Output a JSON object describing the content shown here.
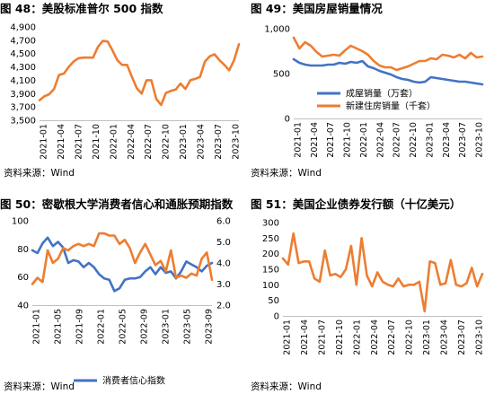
{
  "colors": {
    "blue": "#4472C4",
    "orange": "#ED7D31",
    "title_bar": "#C00000",
    "axis": "#999999"
  },
  "chart_data": [
    {
      "id": "p48",
      "type": "line",
      "title": "图 48：美股标准普尔 500 指数",
      "source": "资料来源：Wind",
      "ylim": [
        3500,
        4900
      ],
      "y_ticks": [
        "3,500",
        "3,700",
        "3,900",
        "4,100",
        "4,300",
        "4,500",
        "4,700",
        "4,900"
      ],
      "x_tick_labels": [
        "2021-01",
        "2021-04",
        "2021-07",
        "2021-10",
        "2022-01",
        "2022-04",
        "2022-07",
        "2022-10",
        "2023-01",
        "2023-04",
        "2023-07",
        "2023-10"
      ],
      "legend": "none",
      "series": [
        {
          "color": "orange",
          "values": [
            3800,
            3860,
            3890,
            3970,
            4180,
            4200,
            4300,
            4380,
            4430,
            4440,
            4440,
            4440,
            4600,
            4690,
            4680,
            4550,
            4400,
            4330,
            4330,
            4150,
            3980,
            3900,
            4100,
            4100,
            3820,
            3730,
            3910,
            3940,
            3960,
            4050,
            3970,
            4100,
            4120,
            4150,
            4380,
            4460,
            4490,
            4400,
            4330,
            4250,
            4400,
            4640
          ]
        }
      ]
    },
    {
      "id": "p49",
      "type": "line",
      "title": "图 49：美国房屋销量情况",
      "source": "资料来源：Wind",
      "ylim": [
        0,
        1000
      ],
      "y_ticks": [
        "0",
        "500",
        "1,000"
      ],
      "x_tick_labels": [
        "2021-01",
        "2021-04",
        "2021-07",
        "2021-10",
        "2022-01",
        "2022-04",
        "2022-07",
        "2022-10",
        "2023-01",
        "2023-04",
        "2023-07",
        "2023-10"
      ],
      "legend": "bottom-left",
      "series": [
        {
          "name": "成屋销量（万套）",
          "color": "blue",
          "values": [
            660,
            620,
            600,
            590,
            590,
            590,
            600,
            600,
            620,
            610,
            630,
            620,
            640,
            580,
            560,
            530,
            510,
            490,
            460,
            440,
            430,
            410,
            400,
            410,
            460,
            450,
            440,
            430,
            420,
            410,
            410,
            400,
            390,
            380
          ]
        },
        {
          "name": "新建住房销量（千套）",
          "color": "orange",
          "values": [
            900,
            780,
            850,
            810,
            740,
            690,
            700,
            710,
            700,
            760,
            810,
            780,
            750,
            710,
            640,
            590,
            570,
            570,
            540,
            560,
            580,
            610,
            640,
            640,
            670,
            660,
            710,
            700,
            680,
            710,
            670,
            730,
            680,
            690
          ]
        }
      ]
    },
    {
      "id": "p50",
      "type": "line",
      "title": "图 50：密歇根大学消费者信心和通胀预期指数",
      "source": "资料来源：Wind",
      "ylim": [
        40,
        100
      ],
      "y_ticks": [
        "40",
        "60",
        "80",
        "100"
      ],
      "y2lim": [
        2.0,
        6.0
      ],
      "y2_ticks": [
        "2.0",
        "3.0",
        "4.0",
        "5.0",
        "6.0"
      ],
      "x_tick_labels": [
        "2021-01",
        "2021-05",
        "2021-09",
        "2022-01",
        "2022-05",
        "2022-09",
        "2023-01",
        "2023-05",
        "2023-09"
      ],
      "legend": "bottom",
      "series": [
        {
          "name": "消费者信心指数",
          "color": "blue",
          "axis": "left",
          "values": [
            79,
            77,
            84,
            88,
            82,
            85,
            81,
            70,
            72,
            71,
            67,
            70,
            67,
            62,
            59,
            58,
            50,
            52,
            58,
            59,
            59,
            60,
            64,
            67,
            62,
            67,
            63,
            64,
            59,
            64,
            71,
            69,
            67,
            64,
            68,
            70
          ]
        },
        {
          "color": "orange",
          "axis": "right",
          "values": [
            3.0,
            3.3,
            3.1,
            4.6,
            4.0,
            4.2,
            4.7,
            4.6,
            4.8,
            4.9,
            4.8,
            4.9,
            4.8,
            5.4,
            5.4,
            5.3,
            5.3,
            4.9,
            5.1,
            4.7,
            4.0,
            4.5,
            4.9,
            4.4,
            3.9,
            4.1,
            3.6,
            4.6,
            3.3,
            3.4,
            3.3,
            3.5,
            3.4,
            4.2,
            4.5,
            3.2
          ]
        }
      ]
    },
    {
      "id": "p51",
      "type": "line",
      "title": "图 51：美国企业债券发行额（十亿美元）",
      "source": "资料来源：Wind",
      "ylim": [
        0,
        300
      ],
      "y_ticks": [
        "0",
        "50",
        "100",
        "150",
        "200",
        "250",
        "300"
      ],
      "x_tick_labels": [
        "2021-01",
        "2021-04",
        "2021-07",
        "2021-10",
        "2022-01",
        "2022-04",
        "2022-07",
        "2022-10",
        "2023-01",
        "2023-04",
        "2023-07",
        "2023-10"
      ],
      "legend": "none",
      "series": [
        {
          "color": "orange",
          "values": [
            185,
            165,
            265,
            170,
            175,
            175,
            120,
            110,
            210,
            130,
            135,
            125,
            150,
            225,
            100,
            250,
            130,
            95,
            140,
            110,
            100,
            95,
            120,
            95,
            100,
            100,
            110,
            15,
            175,
            170,
            100,
            105,
            180,
            100,
            95,
            105,
            155,
            95,
            135
          ]
        }
      ]
    }
  ]
}
